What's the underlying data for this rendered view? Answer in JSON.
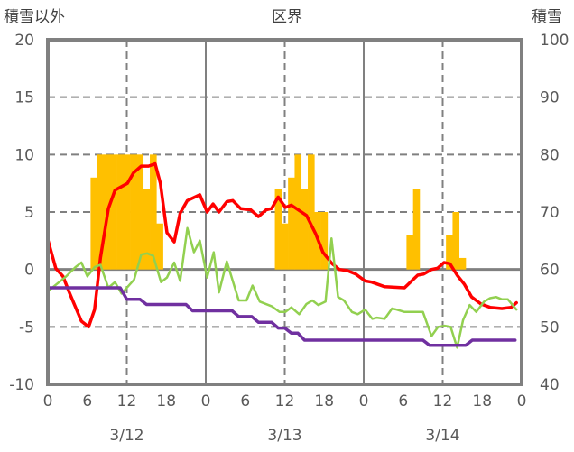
{
  "chart_data": {
    "type": "bar+line",
    "title": "区界",
    "left_axis_label": "積雪以外",
    "right_axis_label": "積雪",
    "left_ylim": [
      -10,
      20
    ],
    "left_ticks": [
      "-10",
      "-5",
      "0",
      "5",
      "10",
      "15",
      "20"
    ],
    "right_ylim": [
      40,
      100
    ],
    "right_ticks": [
      "40",
      "50",
      "60",
      "70",
      "80",
      "90",
      "100"
    ],
    "x_unit": "hours since 3/12 0:00",
    "xlim": [
      0,
      72
    ],
    "x_tick_labels": [
      "0",
      "6",
      "12",
      "18",
      "0",
      "6",
      "12",
      "18",
      "0",
      "6",
      "12",
      "18",
      "0"
    ],
    "date_labels": [
      "3/12",
      "3/13",
      "3/14"
    ],
    "grid": true,
    "colors": {
      "bars": "#FFC000",
      "red": "#FF0000",
      "green": "#92D050",
      "purple": "#7030A0",
      "axis": "#808080"
    },
    "bars": {
      "axis": "left",
      "points": [
        [
          7,
          8
        ],
        [
          8,
          10
        ],
        [
          9,
          10
        ],
        [
          10,
          10
        ],
        [
          11,
          10
        ],
        [
          12,
          10
        ],
        [
          13,
          10
        ],
        [
          14,
          10
        ],
        [
          15,
          7
        ],
        [
          16,
          10
        ],
        [
          17,
          4
        ],
        [
          35,
          7
        ],
        [
          36,
          4
        ],
        [
          37,
          8
        ],
        [
          38,
          10
        ],
        [
          39,
          7
        ],
        [
          40,
          10
        ],
        [
          41,
          5
        ],
        [
          42,
          5
        ],
        [
          55,
          3
        ],
        [
          56,
          7
        ],
        [
          61,
          3
        ],
        [
          62,
          5
        ],
        [
          63,
          1
        ]
      ]
    },
    "series": [
      {
        "name": "red",
        "axis": "left",
        "points": [
          [
            0,
            2.6
          ],
          [
            1.2,
            0.1
          ],
          [
            2.3,
            -0.6
          ],
          [
            3.2,
            -1.9
          ],
          [
            5.1,
            -4.5
          ],
          [
            6.2,
            -5.0
          ],
          [
            7.1,
            -3.5
          ],
          [
            8,
            1.0
          ],
          [
            9.2,
            5.3
          ],
          [
            10.2,
            6.9
          ],
          [
            12.1,
            7.5
          ],
          [
            13,
            8.4
          ],
          [
            14.2,
            9.0
          ],
          [
            15.3,
            9.0
          ],
          [
            16.3,
            9.2
          ],
          [
            17.1,
            7.5
          ],
          [
            18.1,
            3.2
          ],
          [
            19.2,
            2.4
          ],
          [
            20.1,
            4.9
          ],
          [
            21.2,
            6.0
          ],
          [
            23.1,
            6.5
          ],
          [
            24.2,
            5.0
          ],
          [
            25.1,
            5.7
          ],
          [
            26,
            5.0
          ],
          [
            27.2,
            5.9
          ],
          [
            28.1,
            6.0
          ],
          [
            29.3,
            5.3
          ],
          [
            30.8,
            5.2
          ],
          [
            32,
            4.6
          ],
          [
            33.2,
            5.2
          ],
          [
            34,
            5.3
          ],
          [
            35,
            6.3
          ],
          [
            36.1,
            5.4
          ],
          [
            37,
            5.6
          ],
          [
            39.3,
            4.7
          ],
          [
            40.7,
            3.1
          ],
          [
            41.8,
            1.5
          ],
          [
            43.2,
            0.5
          ],
          [
            44.3,
            0
          ],
          [
            45.5,
            -0.1
          ],
          [
            46.8,
            -0.4
          ],
          [
            48.2,
            -1.0
          ],
          [
            49.2,
            -1.1
          ],
          [
            51.2,
            -1.5
          ],
          [
            54.2,
            -1.6
          ],
          [
            56.2,
            -0.5
          ],
          [
            57.1,
            -0.4
          ],
          [
            58.3,
            0
          ],
          [
            59.2,
            0.1
          ],
          [
            60.2,
            0.6
          ],
          [
            61.1,
            0.5
          ],
          [
            62.2,
            -0.5
          ],
          [
            63.3,
            -1.3
          ],
          [
            64.4,
            -2.4
          ],
          [
            65.8,
            -3.0
          ],
          [
            67.2,
            -3.3
          ],
          [
            69,
            -3.4
          ],
          [
            70.4,
            -3.3
          ],
          [
            71.2,
            -2.9
          ]
        ]
      },
      {
        "name": "green",
        "axis": "left",
        "points": [
          [
            0,
            -1.9
          ],
          [
            2.8,
            -0.6
          ],
          [
            4.2,
            0.2
          ],
          [
            5.1,
            0.6
          ],
          [
            6,
            -0.6
          ],
          [
            7.1,
            0.2
          ],
          [
            8,
            0.4
          ],
          [
            9.2,
            -1.6
          ],
          [
            10.2,
            -1.1
          ],
          [
            11.2,
            -2.1
          ],
          [
            13.1,
            -0.9
          ],
          [
            14.2,
            1.3
          ],
          [
            15.1,
            1.4
          ],
          [
            16,
            1.2
          ],
          [
            17.2,
            -1.1
          ],
          [
            18.1,
            -0.7
          ],
          [
            19.2,
            0.6
          ],
          [
            20.1,
            -1.0
          ],
          [
            21.2,
            3.6
          ],
          [
            22.2,
            1.5
          ],
          [
            23.1,
            2.5
          ],
          [
            24.2,
            -0.7
          ],
          [
            25.2,
            1.5
          ],
          [
            26,
            -2.0
          ],
          [
            27.2,
            0.7
          ],
          [
            29,
            -2.7
          ],
          [
            30.2,
            -2.7
          ],
          [
            31.1,
            -1.4
          ],
          [
            32.2,
            -2.8
          ],
          [
            34,
            -3.2
          ],
          [
            35.2,
            -3.7
          ],
          [
            36.1,
            -3.7
          ],
          [
            37,
            -3.3
          ],
          [
            38.2,
            -3.9
          ],
          [
            39.3,
            -3.0
          ],
          [
            40.2,
            -2.7
          ],
          [
            41.1,
            -3.1
          ],
          [
            42.2,
            -2.8
          ],
          [
            43.1,
            2.7
          ],
          [
            44.1,
            -2.4
          ],
          [
            45,
            -2.7
          ],
          [
            46.2,
            -3.7
          ],
          [
            47.1,
            -3.9
          ],
          [
            48.2,
            -3.5
          ],
          [
            49.3,
            -4.3
          ],
          [
            50,
            -4.2
          ],
          [
            51.2,
            -4.3
          ],
          [
            52.3,
            -3.4
          ],
          [
            53,
            -3.5
          ],
          [
            54.2,
            -3.7
          ],
          [
            57,
            -3.7
          ],
          [
            58.3,
            -5.8
          ],
          [
            59.3,
            -5.0
          ],
          [
            60.3,
            -4.9
          ],
          [
            61.2,
            -5.0
          ],
          [
            62.2,
            -6.8
          ],
          [
            63.1,
            -4.4
          ],
          [
            64.1,
            -3.1
          ],
          [
            65.1,
            -3.7
          ],
          [
            66.3,
            -2.8
          ],
          [
            67.2,
            -2.5
          ],
          [
            68.1,
            -2.4
          ],
          [
            69,
            -2.6
          ],
          [
            69.9,
            -2.6
          ],
          [
            71.2,
            -3.5
          ]
        ]
      },
      {
        "name": "purple",
        "axis": "right",
        "points": [
          [
            0,
            56.8
          ],
          [
            11,
            56.8
          ],
          [
            12,
            54.8
          ],
          [
            14,
            54.8
          ],
          [
            15,
            53.9
          ],
          [
            21,
            53.9
          ],
          [
            22,
            52.8
          ],
          [
            28,
            52.8
          ],
          [
            29,
            51.8
          ],
          [
            31,
            51.8
          ],
          [
            32,
            50.8
          ],
          [
            34,
            50.8
          ],
          [
            35,
            49.8
          ],
          [
            36,
            49.8
          ],
          [
            37,
            48.9
          ],
          [
            38,
            48.9
          ],
          [
            39,
            47.7
          ],
          [
            57,
            47.7
          ],
          [
            58,
            46.8
          ],
          [
            63.5,
            46.8
          ],
          [
            64.5,
            47.7
          ],
          [
            71,
            47.7
          ]
        ]
      }
    ]
  }
}
